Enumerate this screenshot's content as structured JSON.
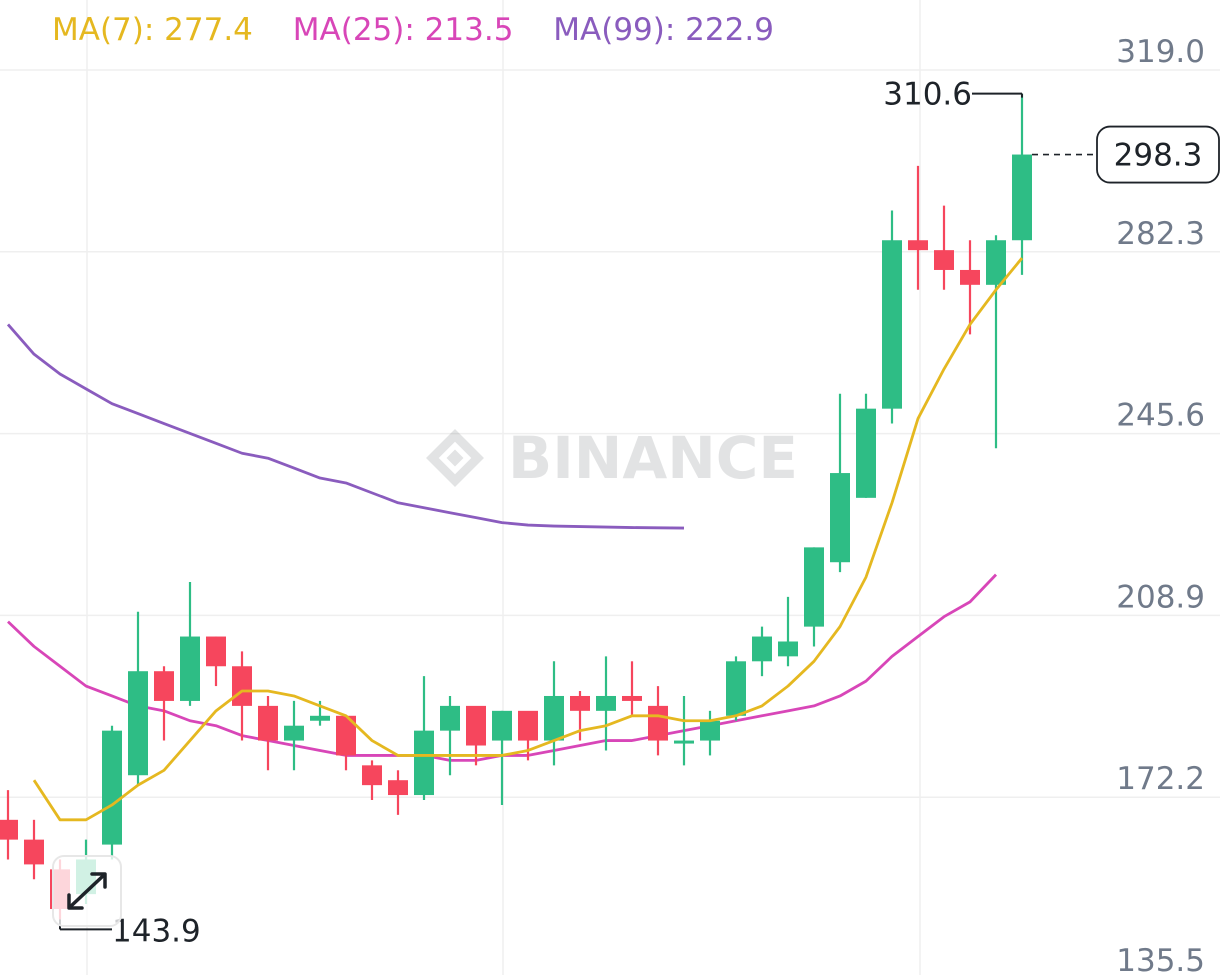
{
  "ma_legend": [
    {
      "label": "MA(7): 277.4",
      "color": "#E5B820"
    },
    {
      "label": "MA(25): 213.5",
      "color": "#D846B8"
    },
    {
      "label": "MA(99): 222.9",
      "color": "#8A5CBE"
    }
  ],
  "watermark": "BINANCE",
  "price_axis": {
    "ticks": [
      135.5,
      172.2,
      208.9,
      245.6,
      282.3,
      319.0
    ],
    "tick_labels": [
      "135.5",
      "172.2",
      "208.9",
      "245.6",
      "282.3",
      "319.0"
    ]
  },
  "markers": {
    "high_label": "310.6",
    "low_label": "143.9",
    "current_price_label": "298.3"
  },
  "colors": {
    "up": "#2EBD85",
    "down": "#F6465D",
    "grid": "#EFEFEF",
    "axis_text": "#707A8A"
  },
  "chart_data": {
    "type": "candlestick",
    "ylim": [
      135.5,
      319.0
    ],
    "candles": [
      {
        "o": 164,
        "h": 170,
        "l": 156,
        "c": 160
      },
      {
        "o": 160,
        "h": 164,
        "l": 152,
        "c": 155
      },
      {
        "o": 154,
        "h": 156,
        "l": 143.9,
        "c": 146
      },
      {
        "o": 149,
        "h": 160,
        "l": 147,
        "c": 156
      },
      {
        "o": 159,
        "h": 183,
        "l": 156,
        "c": 182
      },
      {
        "o": 173,
        "h": 206,
        "l": 171,
        "c": 194
      },
      {
        "o": 194,
        "h": 195,
        "l": 180,
        "c": 188
      },
      {
        "o": 188,
        "h": 212,
        "l": 187,
        "c": 201
      },
      {
        "o": 201,
        "h": 201,
        "l": 191,
        "c": 195
      },
      {
        "o": 195,
        "h": 198,
        "l": 180,
        "c": 187
      },
      {
        "o": 187,
        "h": 189,
        "l": 174,
        "c": 180
      },
      {
        "o": 180,
        "h": 188,
        "l": 174,
        "c": 183
      },
      {
        "o": 184,
        "h": 188,
        "l": 183,
        "c": 185
      },
      {
        "o": 185,
        "h": 185,
        "l": 174,
        "c": 177
      },
      {
        "o": 175,
        "h": 176,
        "l": 168,
        "c": 171
      },
      {
        "o": 172,
        "h": 174,
        "l": 165,
        "c": 169
      },
      {
        "o": 169,
        "h": 193,
        "l": 168,
        "c": 182
      },
      {
        "o": 182,
        "h": 189,
        "l": 173,
        "c": 187
      },
      {
        "o": 187,
        "h": 186,
        "l": 175,
        "c": 179
      },
      {
        "o": 180,
        "h": 186,
        "l": 167,
        "c": 186
      },
      {
        "o": 186,
        "h": 185,
        "l": 176,
        "c": 180
      },
      {
        "o": 180,
        "h": 196,
        "l": 175,
        "c": 189
      },
      {
        "o": 189,
        "h": 190,
        "l": 180,
        "c": 186
      },
      {
        "o": 186,
        "h": 197,
        "l": 178,
        "c": 189
      },
      {
        "o": 189,
        "h": 196,
        "l": 185,
        "c": 188
      },
      {
        "o": 187,
        "h": 191,
        "l": 177,
        "c": 180
      },
      {
        "o": 180,
        "h": 189,
        "l": 175,
        "c": 180
      },
      {
        "o": 180,
        "h": 186,
        "l": 177,
        "c": 184
      },
      {
        "o": 185,
        "h": 197,
        "l": 184,
        "c": 196
      },
      {
        "o": 196,
        "h": 203,
        "l": 193,
        "c": 201
      },
      {
        "o": 197,
        "h": 209,
        "l": 195,
        "c": 200
      },
      {
        "o": 203,
        "h": 219,
        "l": 199,
        "c": 219
      },
      {
        "o": 216,
        "h": 250,
        "l": 214,
        "c": 234
      },
      {
        "o": 229,
        "h": 250,
        "l": 229,
        "c": 247
      },
      {
        "o": 247,
        "h": 287,
        "l": 244,
        "c": 281
      },
      {
        "o": 281,
        "h": 296,
        "l": 271,
        "c": 279
      },
      {
        "o": 279,
        "h": 288,
        "l": 271,
        "c": 275
      },
      {
        "o": 275,
        "h": 281,
        "l": 262,
        "c": 272
      },
      {
        "o": 272,
        "h": 282,
        "l": 239,
        "c": 281
      },
      {
        "o": 281,
        "h": 310.6,
        "l": 274,
        "c": 298.3
      }
    ],
    "ma7": [
      null,
      172,
      164,
      164,
      167,
      171,
      174,
      180,
      186,
      190,
      190,
      189,
      187,
      185,
      180,
      177,
      177,
      177,
      177,
      177,
      178,
      180,
      182,
      183,
      185,
      185,
      184,
      184,
      185,
      187,
      191,
      196,
      203,
      213,
      228,
      245,
      255,
      264,
      271,
      277.4
    ],
    "ma25": [
      204,
      199,
      195,
      191,
      189,
      187,
      186,
      184,
      183,
      181,
      180,
      179,
      178,
      177,
      177,
      177,
      177,
      176,
      176,
      177,
      177,
      178,
      179,
      180,
      180,
      181,
      182,
      183,
      184,
      185,
      186,
      187,
      189,
      192,
      197,
      201,
      205,
      208,
      213.5
    ],
    "ma99": [
      264,
      258,
      254,
      251,
      248,
      246,
      244,
      242,
      240,
      238,
      237,
      235,
      233,
      232,
      230,
      228,
      227,
      226,
      225,
      224,
      223.5,
      223.3,
      223.2,
      223.1,
      223.0,
      222.95,
      222.9
    ],
    "ma25_start_index": 0,
    "ma99_start_index": 0
  }
}
